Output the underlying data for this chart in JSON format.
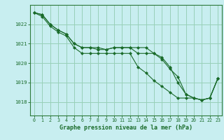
{
  "title": "Graphe pression niveau de la mer (hPa)",
  "bg_color": "#c8eef0",
  "plot_bg_color": "#c8eef0",
  "grid_color": "#98d0b8",
  "line_color": "#1a6b2a",
  "spine_color": "#2d7a3a",
  "x_ticks": [
    0,
    1,
    2,
    3,
    4,
    5,
    6,
    7,
    8,
    9,
    10,
    11,
    12,
    13,
    14,
    15,
    16,
    17,
    18,
    19,
    20,
    21,
    22,
    23
  ],
  "y_ticks": [
    1018,
    1019,
    1020,
    1021,
    1022
  ],
  "ylim": [
    1017.3,
    1023.0
  ],
  "xlim": [
    -0.5,
    23.5
  ],
  "series": [
    [
      1022.6,
      1022.5,
      1022.0,
      1021.7,
      1021.5,
      1021.0,
      1020.8,
      1020.8,
      1020.7,
      1020.7,
      1020.8,
      1020.8,
      1020.8,
      1020.8,
      1020.8,
      1020.5,
      1020.2,
      1019.7,
      1019.3,
      1018.4,
      1018.2,
      1018.1,
      1018.2,
      1019.2
    ],
    [
      1022.6,
      1022.5,
      1022.0,
      1021.7,
      1021.5,
      1021.0,
      1020.8,
      1020.8,
      1020.8,
      1020.7,
      1020.8,
      1020.8,
      1020.8,
      1020.5,
      1020.5,
      1020.5,
      1020.3,
      1019.8,
      1019.0,
      1018.4,
      1018.2,
      1018.1,
      1018.2,
      1019.2
    ],
    [
      1022.6,
      1022.4,
      1021.9,
      1021.6,
      1021.4,
      1020.8,
      1020.5,
      1020.5,
      1020.5,
      1020.5,
      1020.5,
      1020.5,
      1020.5,
      1019.8,
      1019.5,
      1019.1,
      1018.8,
      1018.5,
      1018.2,
      1018.2,
      1018.2,
      1018.1,
      1018.2,
      1019.2
    ]
  ]
}
